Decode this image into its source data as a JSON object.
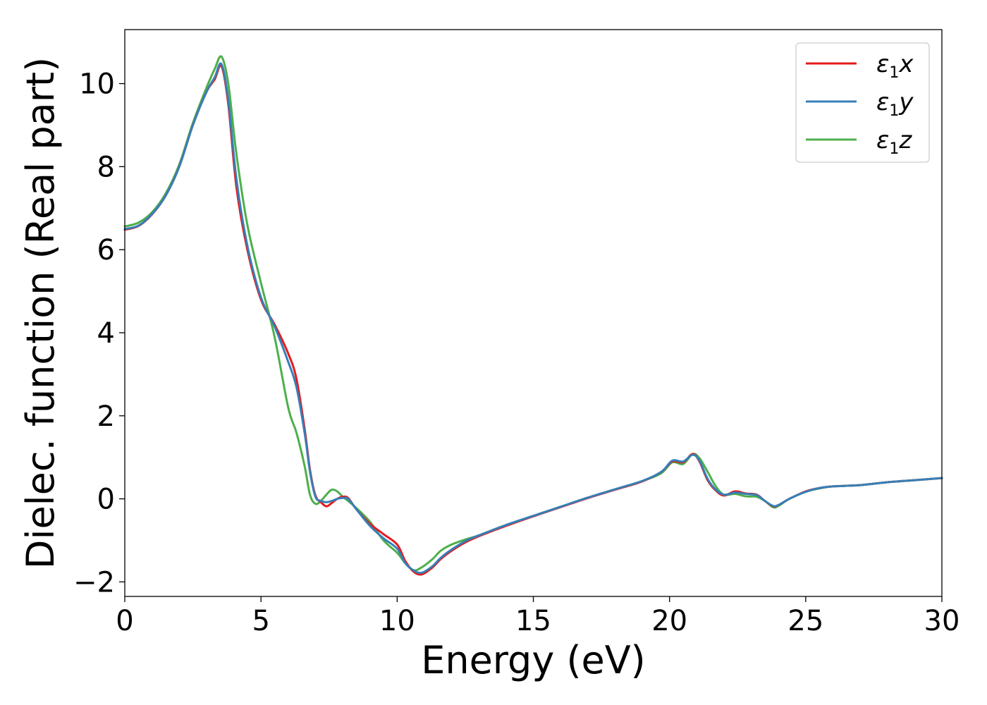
{
  "chart_data": {
    "type": "line",
    "xlabel": "Energy (eV)",
    "ylabel": "Dielec. function (Real part)",
    "xlim": [
      0,
      30
    ],
    "ylim": [
      -2.35,
      11.3
    ],
    "xticks": [
      0,
      5,
      10,
      15,
      20,
      25,
      30
    ],
    "xtick_labels": [
      "0",
      "5",
      "10",
      "15",
      "20",
      "25",
      "30"
    ],
    "yticks": [
      -2,
      0,
      2,
      4,
      6,
      8,
      10
    ],
    "ytick_labels": [
      "−2",
      "0",
      "2",
      "4",
      "6",
      "8",
      "10"
    ],
    "grid": false,
    "legend_position": "top-right",
    "x": [
      0,
      0.5,
      1,
      1.5,
      2,
      2.5,
      3,
      3.3,
      3.55,
      3.8,
      4.1,
      4.5,
      5,
      5.5,
      6,
      6.3,
      6.6,
      6.8,
      7,
      7.2,
      7.4,
      7.6,
      7.8,
      8,
      8.2,
      8.5,
      9,
      9.5,
      10,
      10.3,
      10.6,
      10.9,
      11.3,
      11.6,
      12,
      12.5,
      13,
      14,
      15,
      16,
      17,
      18,
      19,
      19.7,
      20.1,
      20.5,
      20.85,
      21.1,
      21.4,
      21.7,
      22,
      22.4,
      22.8,
      23.2,
      23.5,
      23.8,
      24,
      24.4,
      25,
      25.5,
      26,
      27,
      28,
      29,
      30
    ],
    "series": [
      {
        "name": "ε₁x",
        "color": "#e41a1c",
        "values": [
          6.48,
          6.57,
          6.85,
          7.3,
          8.0,
          9.0,
          9.8,
          10.1,
          10.42,
          9.5,
          7.5,
          6.0,
          4.8,
          4.2,
          3.5,
          2.9,
          1.7,
          0.7,
          0.08,
          -0.08,
          -0.18,
          -0.1,
          0.0,
          0.05,
          0.02,
          -0.25,
          -0.6,
          -0.85,
          -1.1,
          -1.5,
          -1.75,
          -1.82,
          -1.65,
          -1.45,
          -1.25,
          -1.05,
          -0.9,
          -0.65,
          -0.42,
          -0.2,
          0.02,
          0.22,
          0.42,
          0.65,
          0.9,
          0.88,
          1.08,
          0.9,
          0.45,
          0.2,
          0.08,
          0.18,
          0.13,
          0.1,
          -0.05,
          -0.18,
          -0.15,
          0.0,
          0.18,
          0.26,
          0.3,
          0.33,
          0.4,
          0.45,
          0.5
        ]
      },
      {
        "name": "ε₁y",
        "color": "#377eb8",
        "values": [
          6.5,
          6.58,
          6.86,
          7.3,
          8.0,
          9.0,
          9.8,
          10.15,
          10.47,
          9.6,
          7.7,
          6.1,
          4.85,
          4.15,
          3.3,
          2.7,
          1.6,
          0.65,
          0.05,
          -0.05,
          -0.08,
          -0.05,
          0.0,
          0.02,
          0.0,
          -0.25,
          -0.65,
          -0.95,
          -1.2,
          -1.55,
          -1.72,
          -1.78,
          -1.62,
          -1.42,
          -1.22,
          -1.02,
          -0.88,
          -0.63,
          -0.41,
          -0.19,
          0.03,
          0.23,
          0.43,
          0.65,
          0.92,
          0.9,
          1.06,
          0.92,
          0.48,
          0.22,
          0.1,
          0.15,
          0.12,
          0.09,
          -0.05,
          -0.17,
          -0.15,
          0.0,
          0.17,
          0.26,
          0.3,
          0.33,
          0.4,
          0.45,
          0.5
        ]
      },
      {
        "name": "ε₁z",
        "color": "#4daf4a",
        "values": [
          6.56,
          6.65,
          6.9,
          7.35,
          8.05,
          9.05,
          9.9,
          10.35,
          10.65,
          10.0,
          8.3,
          6.6,
          5.2,
          3.9,
          2.2,
          1.6,
          0.8,
          0.1,
          -0.12,
          -0.05,
          0.1,
          0.22,
          0.18,
          0.05,
          -0.05,
          -0.22,
          -0.55,
          -1.0,
          -1.3,
          -1.55,
          -1.72,
          -1.65,
          -1.45,
          -1.25,
          -1.1,
          -0.98,
          -0.88,
          -0.63,
          -0.41,
          -0.19,
          0.03,
          0.23,
          0.43,
          0.62,
          0.88,
          0.84,
          1.08,
          0.98,
          0.65,
          0.3,
          0.1,
          0.12,
          0.06,
          0.05,
          -0.05,
          -0.2,
          -0.17,
          0.0,
          0.17,
          0.25,
          0.3,
          0.33,
          0.4,
          0.45,
          0.5
        ]
      }
    ]
  }
}
